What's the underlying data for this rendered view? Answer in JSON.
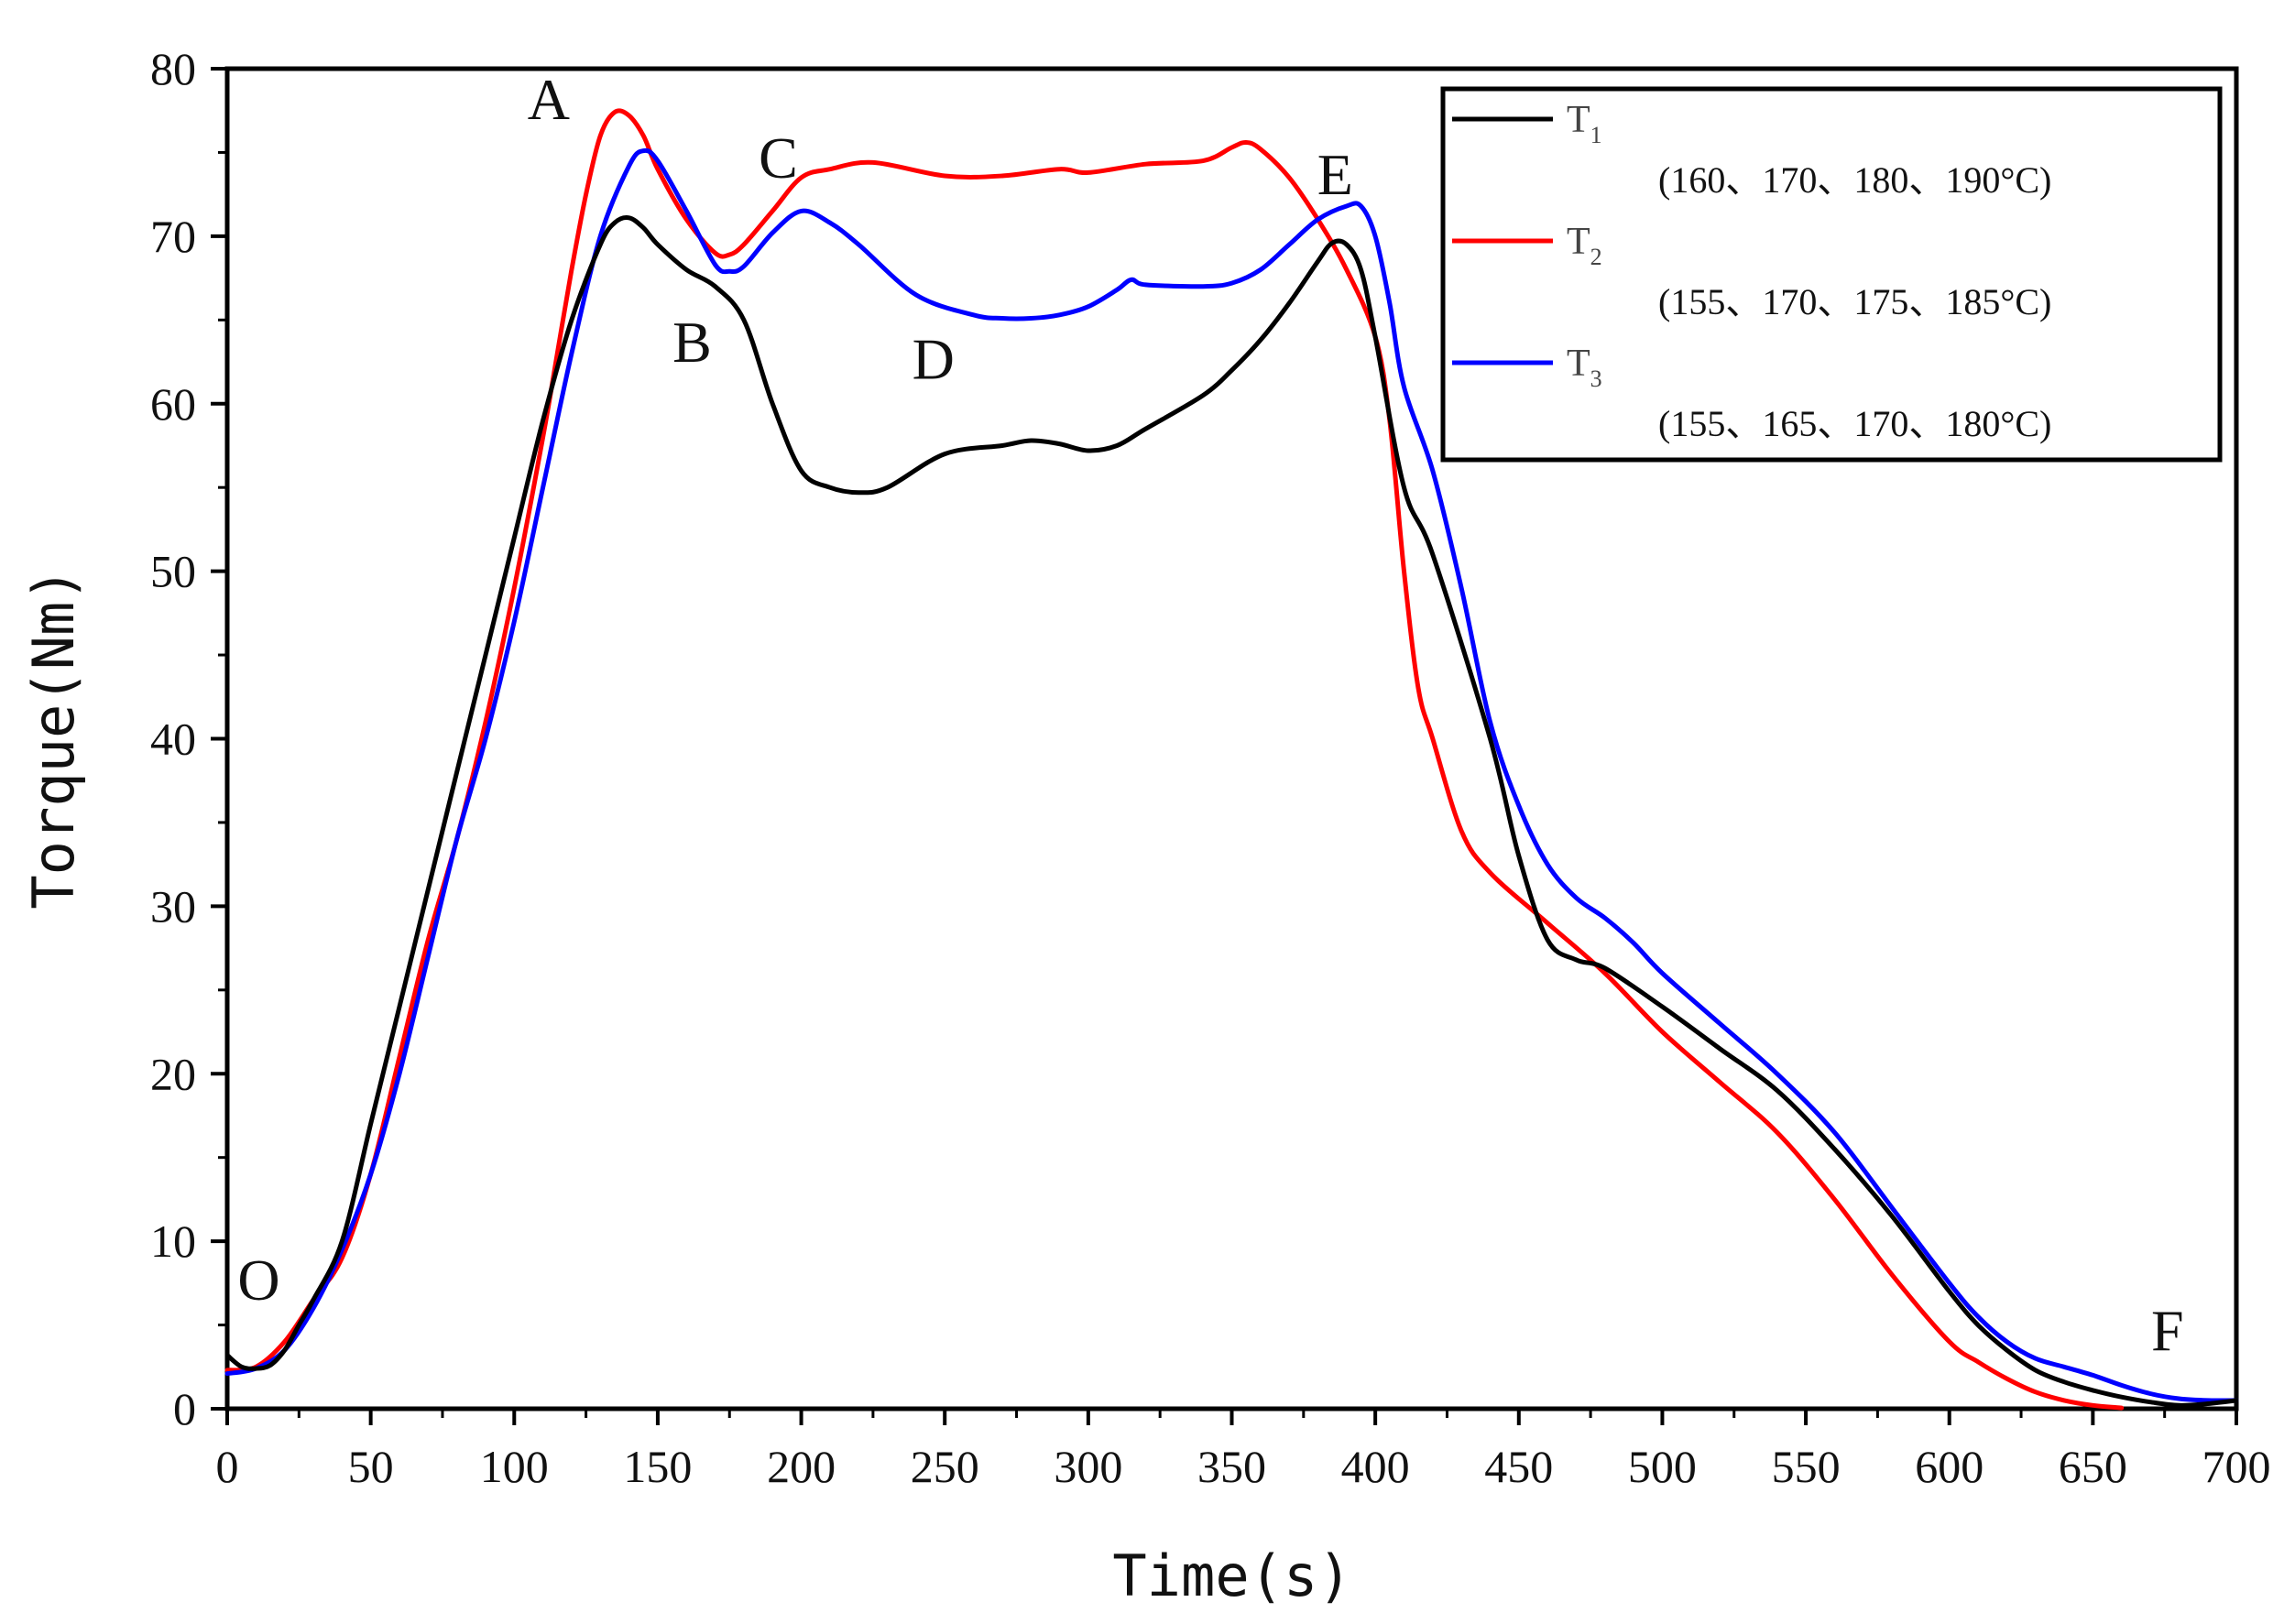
{
  "chart_data": {
    "type": "line",
    "title": "",
    "xlabel": "Time(s)",
    "ylabel": "Torque(Nm)",
    "xlim": [
      0,
      700
    ],
    "ylim": [
      0,
      80
    ],
    "xticks": [
      0,
      50,
      100,
      150,
      200,
      250,
      300,
      350,
      400,
      450,
      500,
      550,
      600,
      650,
      700
    ],
    "yticks": [
      0,
      10,
      20,
      30,
      40,
      50,
      60,
      70,
      80
    ],
    "grid": false,
    "legend_position": "top-right",
    "series": [
      {
        "name": "T",
        "name_sub": "1",
        "description": "(160、170、180、190°C)",
        "color": "#000000",
        "x": [
          0,
          5,
          10,
          15,
          20,
          25,
          30,
          40,
          50,
          60,
          70,
          80,
          90,
          100,
          110,
          120,
          130,
          135,
          140,
          145,
          150,
          160,
          170,
          180,
          190,
          200,
          210,
          220,
          230,
          250,
          270,
          280,
          290,
          300,
          310,
          320,
          340,
          350,
          360,
          370,
          380,
          385,
          390,
          395,
          400,
          410,
          420,
          440,
          450,
          460,
          470,
          480,
          500,
          520,
          540,
          560,
          580,
          600,
          610,
          620,
          630,
          640,
          650,
          660,
          670,
          680,
          690,
          700
        ],
        "y": [
          3.2,
          2.5,
          2.4,
          2.6,
          3.5,
          5,
          6.5,
          10,
          17,
          24,
          31,
          38,
          45,
          52,
          59,
          65,
          69.5,
          70.8,
          71.1,
          70.5,
          69.5,
          68,
          67,
          65,
          60,
          56,
          55,
          54.7,
          55,
          57,
          57.5,
          57.8,
          57.6,
          57.2,
          57.5,
          58.5,
          60.5,
          62,
          63.8,
          66,
          68.5,
          69.6,
          69.5,
          68,
          64,
          55,
          51,
          40,
          33,
          28,
          26.8,
          26.3,
          24,
          21.5,
          19,
          15.5,
          11.5,
          7,
          5,
          3.5,
          2.3,
          1.6,
          1.1,
          0.7,
          0.4,
          0.2,
          0.3,
          0.5
        ]
      },
      {
        "name": "T",
        "name_sub": "2",
        "description": "(155、170、175、185°C)",
        "color": "#ff0000",
        "x": [
          0,
          10,
          20,
          30,
          40,
          50,
          60,
          70,
          80,
          90,
          100,
          110,
          115,
          120,
          125,
          130,
          135,
          140,
          145,
          150,
          160,
          170,
          175,
          180,
          190,
          200,
          210,
          225,
          250,
          270,
          290,
          300,
          320,
          340,
          350,
          355,
          360,
          370,
          380,
          390,
          400,
          405,
          410,
          415,
          420,
          430,
          440,
          460,
          480,
          500,
          520,
          540,
          560,
          580,
          600,
          610,
          620,
          630,
          640,
          650,
          660
        ],
        "y": [
          2.3,
          2.5,
          4,
          6.5,
          9,
          14,
          21,
          28,
          34,
          41,
          49,
          58,
          63,
          68,
          72.5,
          76,
          77.4,
          77.2,
          76,
          74,
          71,
          69,
          68.9,
          69.5,
          71.5,
          73.5,
          74,
          74.4,
          73.6,
          73.6,
          74,
          73.8,
          74.3,
          74.5,
          75.3,
          75.6,
          75.2,
          73.5,
          71,
          68,
          64,
          59,
          50,
          43,
          40,
          34.5,
          32,
          29,
          26,
          22.5,
          19.5,
          16.5,
          12.5,
          8,
          4,
          2.8,
          1.8,
          1.0,
          0.5,
          0.2,
          0.05
        ]
      },
      {
        "name": "T",
        "name_sub": "3",
        "description": "(155、165、170、180°C)",
        "color": "#0000ff",
        "x": [
          0,
          10,
          20,
          30,
          40,
          50,
          60,
          70,
          80,
          90,
          100,
          110,
          120,
          130,
          140,
          145,
          150,
          160,
          170,
          175,
          180,
          190,
          200,
          210,
          220,
          240,
          260,
          270,
          280,
          290,
          300,
          310,
          315,
          320,
          340,
          350,
          360,
          370,
          380,
          390,
          395,
          400,
          405,
          410,
          420,
          430,
          440,
          450,
          460,
          470,
          480,
          490,
          500,
          520,
          540,
          560,
          580,
          600,
          610,
          620,
          630,
          640,
          650,
          660,
          670,
          680,
          690,
          700
        ],
        "y": [
          2.1,
          2.4,
          3.5,
          6,
          9.5,
          14,
          20,
          27,
          34,
          40,
          47,
          55,
          63,
          70,
          74.2,
          75.1,
          74.5,
          71.5,
          68.3,
          67.9,
          68.2,
          70.2,
          71.5,
          70.8,
          69.5,
          66.5,
          65.3,
          65.1,
          65.1,
          65.3,
          65.8,
          66.8,
          67.4,
          67.1,
          67,
          67.2,
          68,
          69.5,
          71,
          71.8,
          71.8,
          70,
          66,
          61,
          56,
          49,
          41,
          36,
          32.5,
          30.5,
          29.3,
          27.8,
          26,
          23,
          20,
          16.5,
          12,
          7.5,
          5.5,
          4,
          3,
          2.5,
          2,
          1.4,
          0.9,
          0.6,
          0.5,
          0.5
        ]
      }
    ],
    "annotations": [
      {
        "label": "O",
        "x": 11,
        "y": 6.5
      },
      {
        "label": "A",
        "x": 112,
        "y": 77
      },
      {
        "label": "B",
        "x": 162,
        "y": 62.5
      },
      {
        "label": "C",
        "x": 192,
        "y": 73.5
      },
      {
        "label": "D",
        "x": 246,
        "y": 61.5
      },
      {
        "label": "E",
        "x": 386,
        "y": 72.5
      },
      {
        "label": "F",
        "x": 676,
        "y": 3.5
      }
    ]
  }
}
